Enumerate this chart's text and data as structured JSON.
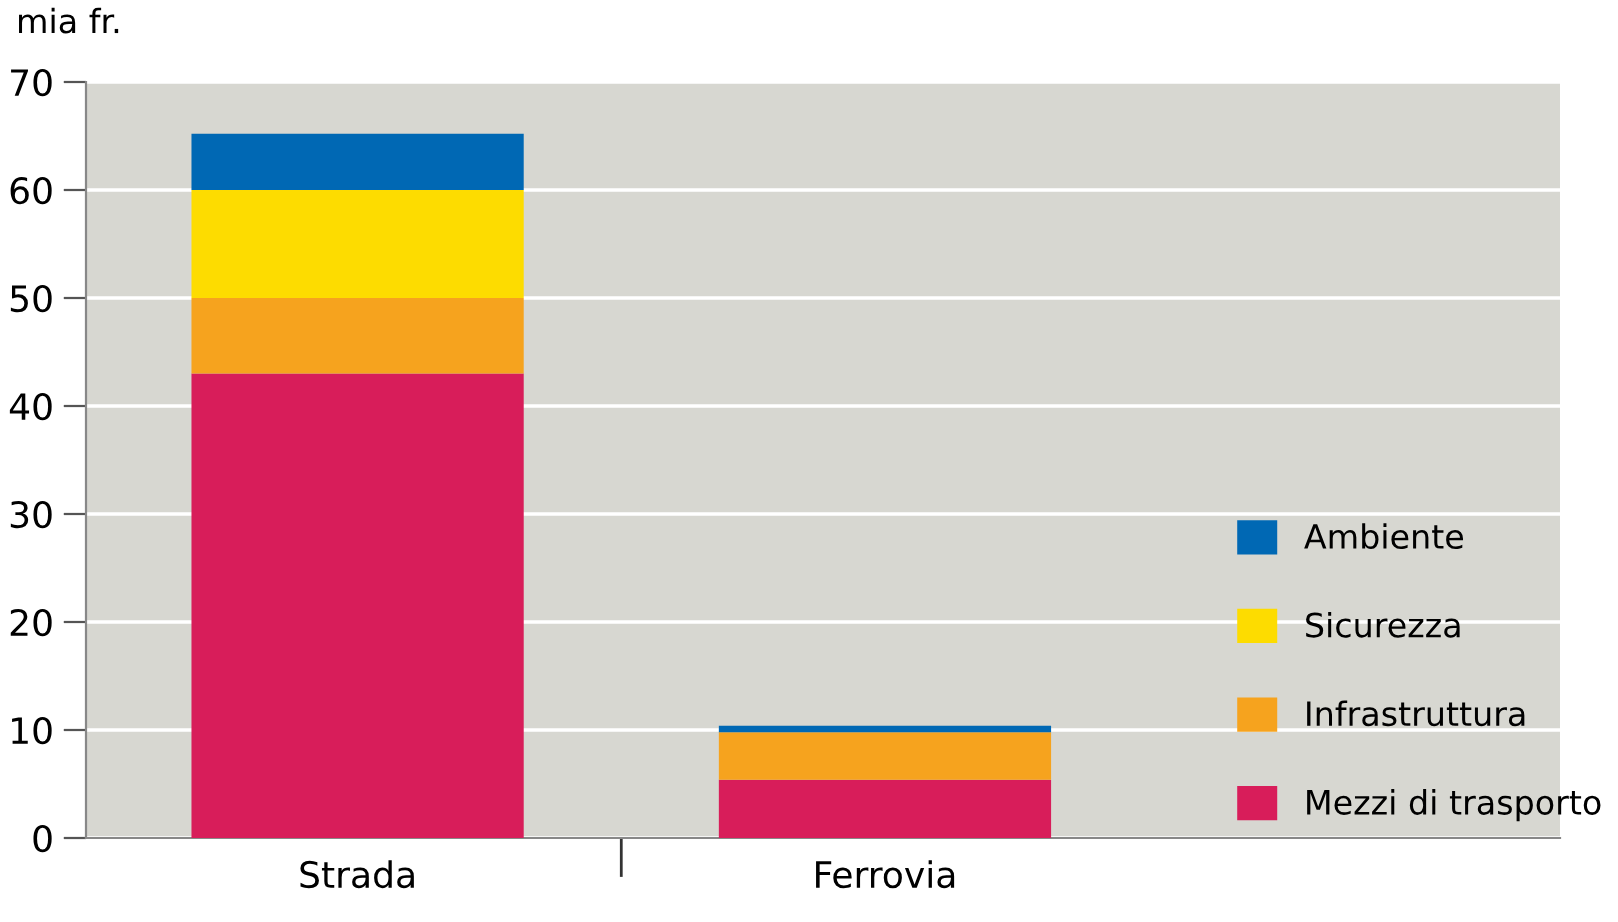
{
  "chart_data": {
    "type": "bar",
    "stacked": true,
    "ylabel": "mia fr.",
    "categories": [
      "Strada",
      "Ferrovia"
    ],
    "series": [
      {
        "name": "Mezzi di trasporto",
        "color": "#d81d5a",
        "values": [
          43,
          5.4
        ]
      },
      {
        "name": "Infrastruttura",
        "color": "#f6a31e",
        "values": [
          7,
          4.4
        ]
      },
      {
        "name": "Sicurezza",
        "color": "#fddc00",
        "values": [
          10,
          0
        ]
      },
      {
        "name": "Ambiente",
        "color": "#0068b4",
        "values": [
          5.2,
          0.6
        ]
      }
    ],
    "ylim": [
      0,
      70
    ],
    "yticks": [
      0,
      10,
      20,
      30,
      40,
      50,
      60,
      70
    ],
    "grid": "y",
    "legend": "bottom right"
  }
}
